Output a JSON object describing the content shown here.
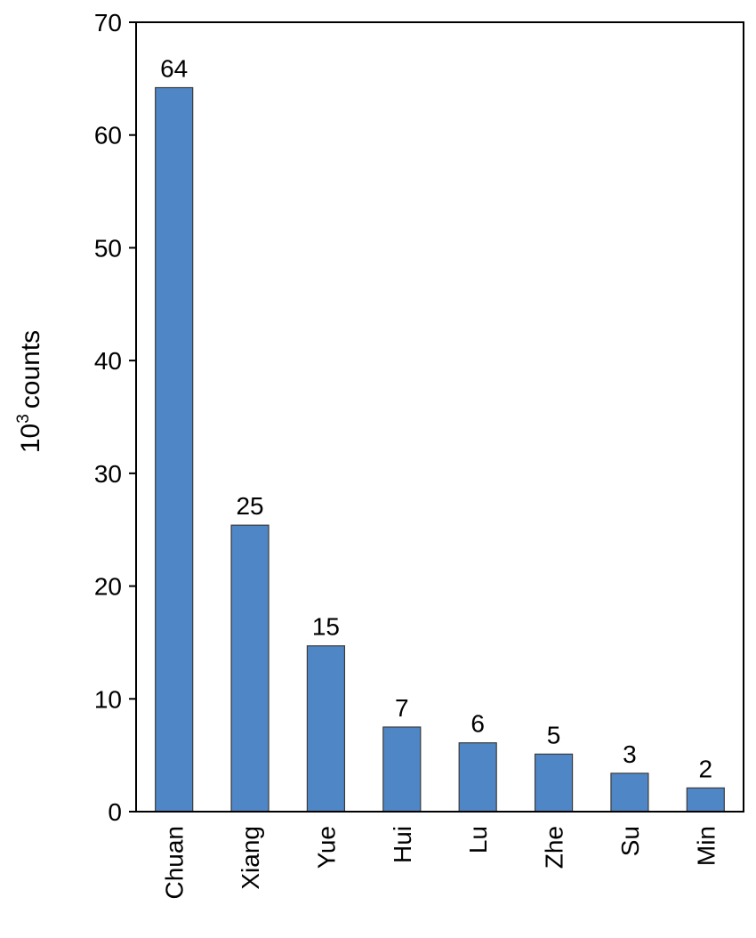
{
  "chart_data": {
    "type": "bar",
    "categories": [
      "Chuan",
      "Xiang",
      "Yue",
      "Hui",
      "Lu",
      "Zhe",
      "Su",
      "Min"
    ],
    "values": [
      64.2,
      25.4,
      14.7,
      7.5,
      6.1,
      5.1,
      3.4,
      2.1
    ],
    "data_labels": [
      "64",
      "25",
      "15",
      "7",
      "6",
      "5",
      "3",
      "2"
    ],
    "ylabel_base": "10",
    "ylabel_sup": "3",
    "ylabel_text": "counts",
    "ylim": [
      0,
      70
    ],
    "yticks": [
      0,
      10,
      20,
      30,
      40,
      50,
      60,
      70
    ],
    "bar_color": "#4f87c6",
    "bar_edge_color": "#3a3a3a",
    "grid": false,
    "legend": "none"
  }
}
